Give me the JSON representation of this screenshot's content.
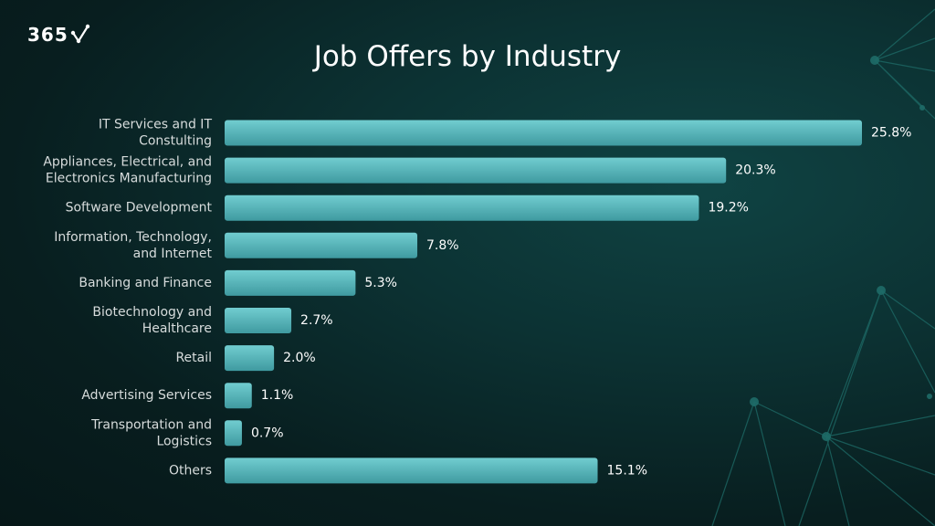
{
  "logo": {
    "text": "365"
  },
  "colors": {
    "bar_top": "#71cdd0",
    "bar_bottom": "#3f9aa0",
    "label": "#d7dcdc",
    "value": "#ffffff",
    "network": "#1e6c68"
  },
  "chart_data": {
    "type": "bar",
    "orientation": "horizontal",
    "title": "Job Offers by Industry",
    "categories": [
      [
        "IT Services and IT",
        "Constulting"
      ],
      [
        "Appliances, Electrical, and",
        "Electronics Manufacturing"
      ],
      [
        "Software Development"
      ],
      [
        "Information, Technology,",
        "and Internet"
      ],
      [
        "Banking and Finance"
      ],
      [
        "Biotechnology and",
        "Healthcare"
      ],
      [
        "Retail"
      ],
      [
        "Advertising Services"
      ],
      [
        "Transportation and",
        "Logistics"
      ],
      [
        "Others"
      ]
    ],
    "values": [
      25.8,
      20.3,
      19.2,
      7.8,
      5.3,
      2.7,
      2.0,
      1.1,
      0.7,
      15.1
    ],
    "value_labels": [
      "25.8%",
      "20.3%",
      "19.2%",
      "7.8%",
      "5.3%",
      "2.7%",
      "2.0%",
      "1.1%",
      "0.7%",
      "15.1%"
    ],
    "unit": "%",
    "xlabel": "",
    "ylabel": "",
    "xlim": [
      0,
      25.8
    ],
    "grid": false,
    "legend": false
  }
}
